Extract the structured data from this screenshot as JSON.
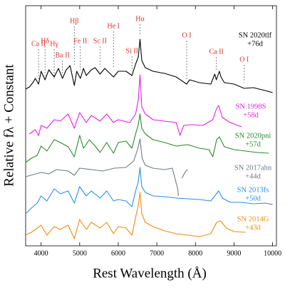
{
  "chart_data": {
    "type": "line",
    "xlabel": "Rest Wavelength (Å)",
    "ylabel": "Relative fλ + Constant",
    "xlim": [
      3600,
      10100
    ],
    "ylim": [
      0,
      337
    ],
    "xticks": [
      4000,
      5000,
      6000,
      7000,
      8000,
      9000,
      10000
    ],
    "annotations": [
      {
        "label": "Ca II",
        "x": 3934
      },
      {
        "label": "Hδ",
        "x": 4102
      },
      {
        "label": "Hγ",
        "x": 4340
      },
      {
        "label": "Ba II",
        "x": 4554
      },
      {
        "label": "Hβ",
        "x": 4861
      },
      {
        "label": "Fe II",
        "x": 5018
      },
      {
        "label": "Sc II",
        "x": 5527
      },
      {
        "label": "He I",
        "x": 5876
      },
      {
        "label": "Si II",
        "x": 6355
      },
      {
        "label": "Hα",
        "x": 6563
      },
      {
        "label": "O I",
        "x": 7774
      },
      {
        "label": "Ca II",
        "x": 8542
      },
      {
        "label": "O I",
        "x": 9264
      }
    ],
    "series": [
      {
        "name": "SN 2020tlf",
        "phase": "+76d",
        "color": "#000000",
        "x": [
          3600,
          3700,
          3800,
          3850,
          3934,
          4000,
          4102,
          4200,
          4340,
          4450,
          4554,
          4650,
          4750,
          4861,
          4924,
          5018,
          5100,
          5169,
          5300,
          5400,
          5527,
          5650,
          5876,
          6000,
          6200,
          6355,
          6450,
          6520,
          6563,
          6610,
          6700,
          6900,
          7200,
          7500,
          7774,
          7850,
          8100,
          8400,
          8500,
          8542,
          8620,
          8662,
          8750,
          9000,
          9264,
          9500,
          9800,
          10000
        ],
        "values": [
          220,
          223,
          230,
          235,
          227,
          245,
          233,
          247,
          237,
          249,
          235,
          247,
          253,
          225,
          245,
          235,
          249,
          239,
          247,
          250,
          241,
          249,
          237,
          245,
          245,
          239,
          255,
          265,
          290,
          260,
          250,
          245,
          242,
          237,
          227,
          233,
          229,
          227,
          241,
          233,
          245,
          237,
          229,
          227,
          221,
          222,
          218,
          215
        ]
      },
      {
        "name": "SN 1998S",
        "phase": "+58d",
        "color": "#e81ee8",
        "x": [
          3700,
          3850,
          3934,
          4000,
          4150,
          4340,
          4500,
          4700,
          4861,
          5000,
          5169,
          5300,
          5527,
          5700,
          5876,
          6000,
          6300,
          6450,
          6520,
          6563,
          6610,
          6700,
          6900,
          7200,
          7500,
          7600,
          7700,
          7900,
          8200,
          8450,
          8550,
          8600,
          8700,
          8900,
          9200
        ],
        "values": [
          157,
          163,
          155,
          169,
          165,
          177,
          175,
          185,
          165,
          187,
          173,
          183,
          175,
          185,
          173,
          177,
          173,
          185,
          205,
          240,
          195,
          185,
          177,
          175,
          173,
          155,
          169,
          170,
          169,
          177,
          193,
          197,
          180,
          173,
          167
        ]
      },
      {
        "name": "SN 2020pni",
        "phase": "+57d",
        "color": "#2a8a2a",
        "x": [
          3600,
          3750,
          3900,
          4000,
          4150,
          4340,
          4500,
          4700,
          4861,
          5000,
          5100,
          5250,
          5400,
          5527,
          5700,
          5876,
          6000,
          6200,
          6355,
          6450,
          6520,
          6563,
          6610,
          6700,
          6900,
          7200,
          7500,
          7800,
          8100,
          8350,
          8450,
          8550,
          8620,
          8750,
          9000,
          9300,
          9600,
          9900
        ],
        "values": [
          117,
          123,
          127,
          140,
          133,
          149,
          145,
          139,
          125,
          155,
          137,
          149,
          140,
          131,
          145,
          130,
          145,
          147,
          137,
          157,
          170,
          185,
          165,
          157,
          149,
          145,
          140,
          142,
          137,
          135,
          125,
          149,
          153,
          139,
          135,
          133,
          131,
          130
        ]
      },
      {
        "name": "SN 2017ahn",
        "phase": "+44d",
        "color": "#6e7b86",
        "x": [
          3600,
          3800,
          4000,
          4200,
          4400,
          4700,
          4861,
          5000,
          5300,
          5600,
          5900,
          6200,
          6400,
          6500,
          6563,
          6620,
          6700,
          6900,
          7200,
          7400,
          7540,
          7560,
          7600,
          7650,
          7750,
          7800
        ],
        "values": [
          97,
          100,
          103,
          101,
          107,
          105,
          99,
          109,
          107,
          105,
          109,
          110,
          119,
          135,
          150,
          123,
          113,
          109,
          107,
          109,
          80,
          70,
          null,
          95,
          105,
          107
        ]
      },
      {
        "name": "SN 2013fs",
        "phase": "+50d",
        "color": "#2b8fe6",
        "x": [
          3600,
          3750,
          3900,
          4000,
          4150,
          4340,
          4500,
          4700,
          4861,
          5000,
          5169,
          5300,
          5527,
          5700,
          5876,
          6000,
          6200,
          6355,
          6450,
          6520,
          6563,
          6610,
          6700,
          6900,
          7200,
          7500,
          7800,
          8100,
          8400,
          8500,
          8600,
          8700,
          8900,
          9200,
          9500,
          9800,
          10000
        ],
        "values": [
          45,
          53,
          60,
          70,
          63,
          80,
          73,
          77,
          60,
          83,
          70,
          77,
          67,
          77,
          63,
          65,
          63,
          55,
          77,
          90,
          110,
          83,
          75,
          70,
          69,
          67,
          66,
          65,
          63,
          70,
          77,
          67,
          61,
          61,
          59,
          60,
          58
        ]
      },
      {
        "name": "SN 2014G",
        "phase": "+43d",
        "color": "#f28c0f",
        "x": [
          3600,
          3750,
          3900,
          4000,
          4150,
          4340,
          4500,
          4700,
          4861,
          5000,
          5169,
          5300,
          5527,
          5700,
          5876,
          6000,
          6200,
          6355,
          6450,
          6520,
          6563,
          6610,
          6700,
          6900,
          7200,
          7500,
          7800,
          8100,
          8400,
          8550,
          8650,
          8800,
          9000,
          9300
        ],
        "values": [
          15,
          19,
          25,
          29,
          15,
          27,
          23,
          29,
          10,
          37,
          23,
          33,
          25,
          33,
          17,
          27,
          25,
          15,
          40,
          57,
          75,
          45,
          33,
          27,
          21,
          17,
          15,
          13,
          17,
          33,
          35,
          25,
          20,
          19
        ]
      }
    ]
  }
}
